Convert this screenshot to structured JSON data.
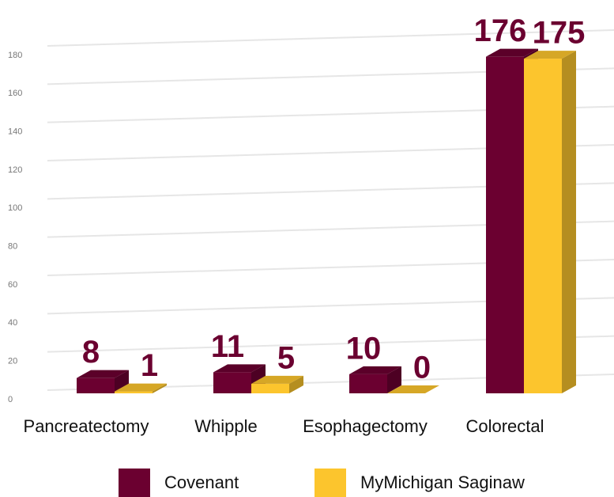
{
  "chart_data": {
    "type": "bar3d",
    "categories": [
      "Pancreatectomy",
      "Whipple",
      "Esophagectomy",
      "Colorectal"
    ],
    "series": [
      {
        "name": "Covenant",
        "color": "#6b0030",
        "values": [
          8,
          11,
          10,
          176
        ]
      },
      {
        "name": "MyMichigan Saginaw",
        "color": "#fcc52d",
        "values": [
          1,
          5,
          0,
          175
        ]
      }
    ],
    "ylim": [
      0,
      180
    ],
    "yticks": [
      0,
      20,
      40,
      60,
      80,
      100,
      120,
      140,
      160,
      180
    ],
    "grid": true,
    "legend": "bottom"
  }
}
